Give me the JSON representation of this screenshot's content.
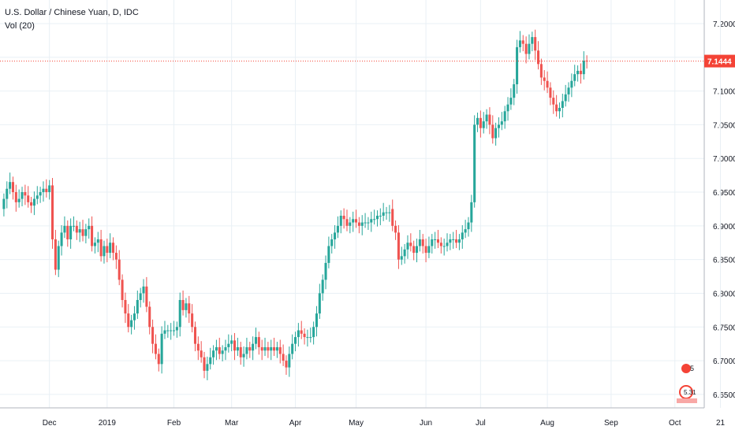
{
  "header": {
    "symbol_title": "U.S. Dollar / Chinese Yuan, D, IDC",
    "indicator": "Vol (20)"
  },
  "colors": {
    "up": "#26a69a",
    "down": "#ef5350",
    "grid": "#e9f0f5",
    "axis_text": "#131722",
    "price_line": "#f44336"
  },
  "chart_data": {
    "type": "candlestick",
    "title": "U.S. Dollar / Chinese Yuan, D, IDC",
    "y_ticks": [
      "7.2000",
      "7.1500",
      "7.1000",
      "7.0500",
      "7.0000",
      "6.9500",
      "6.9000",
      "6.8500",
      "6.8000",
      "6.7500",
      "6.7000",
      "6.6500"
    ],
    "ylim": [
      6.63,
      7.235
    ],
    "x_ticks": [
      {
        "label": "Dec",
        "bar": 15
      },
      {
        "label": "2019",
        "bar": 34
      },
      {
        "label": "Feb",
        "bar": 56
      },
      {
        "label": "Mar",
        "bar": 75
      },
      {
        "label": "Apr",
        "bar": 96
      },
      {
        "label": "May",
        "bar": 116
      },
      {
        "label": "Jun",
        "bar": 139
      },
      {
        "label": "Jul",
        "bar": 157
      },
      {
        "label": "Aug",
        "bar": 179
      },
      {
        "label": "Sep",
        "bar": 200
      },
      {
        "label": "Oct",
        "bar": 221
      },
      {
        "label": "21",
        "bar": 236
      }
    ],
    "grid": true,
    "last_price": 7.1444,
    "last_price_label": "7.1444",
    "closes": [
      6.94,
      6.955,
      6.965,
      6.95,
      6.935,
      6.94,
      6.95,
      6.945,
      6.935,
      6.93,
      6.94,
      6.945,
      6.95,
      6.955,
      6.95,
      6.96,
      6.88,
      6.835,
      6.87,
      6.89,
      6.9,
      6.88,
      6.9,
      6.9,
      6.89,
      6.895,
      6.885,
      6.895,
      6.9,
      6.87,
      6.875,
      6.88,
      6.855,
      6.87,
      6.86,
      6.875,
      6.86,
      6.85,
      6.82,
      6.79,
      6.77,
      6.75,
      6.76,
      6.77,
      6.79,
      6.8,
      6.81,
      6.78,
      6.75,
      6.725,
      6.71,
      6.695,
      6.74,
      6.745,
      6.745,
      6.745,
      6.745,
      6.75,
      6.79,
      6.775,
      6.785,
      6.77,
      6.75,
      6.725,
      6.715,
      6.705,
      6.685,
      6.695,
      6.705,
      6.715,
      6.72,
      6.71,
      6.715,
      6.72,
      6.725,
      6.73,
      6.715,
      6.72,
      6.705,
      6.71,
      6.72,
      6.715,
      6.725,
      6.735,
      6.72,
      6.715,
      6.72,
      6.715,
      6.72,
      6.715,
      6.72,
      6.71,
      6.7,
      6.69,
      6.71,
      6.725,
      6.735,
      6.745,
      6.74,
      6.735,
      6.735,
      6.735,
      6.75,
      6.77,
      6.8,
      6.82,
      6.845,
      6.87,
      6.88,
      6.89,
      6.9,
      6.915,
      6.91,
      6.9,
      6.905,
      6.91,
      6.905,
      6.9,
      6.905,
      6.905,
      6.905,
      6.91,
      6.91,
      6.915,
      6.915,
      6.92,
      6.92,
      6.92,
      6.9,
      6.89,
      6.85,
      6.855,
      6.865,
      6.875,
      6.87,
      6.86,
      6.87,
      6.88,
      6.87,
      6.86,
      6.87,
      6.88,
      6.88,
      6.875,
      6.87,
      6.87,
      6.875,
      6.88,
      6.88,
      6.875,
      6.88,
      6.89,
      6.895,
      6.905,
      6.935,
      7.05,
      7.06,
      7.045,
      7.055,
      7.065,
      7.05,
      7.03,
      7.045,
      7.05,
      7.055,
      7.07,
      7.08,
      7.09,
      7.11,
      7.165,
      7.175,
      7.17,
      7.155,
      7.17,
      7.18,
      7.16,
      7.14,
      7.12,
      7.115,
      7.105,
      7.09,
      7.08,
      7.07,
      7.075,
      7.085,
      7.095,
      7.105,
      7.115,
      7.125,
      7.13,
      7.125,
      7.145,
      7.1444
    ],
    "opens": [
      6.925,
      6.94,
      6.955,
      6.965,
      6.95,
      6.935,
      6.94,
      6.95,
      6.945,
      6.935,
      6.93,
      6.94,
      6.945,
      6.95,
      6.955,
      6.95,
      6.96,
      6.88,
      6.835,
      6.87,
      6.89,
      6.9,
      6.88,
      6.9,
      6.9,
      6.89,
      6.895,
      6.885,
      6.895,
      6.9,
      6.87,
      6.875,
      6.88,
      6.855,
      6.87,
      6.86,
      6.875,
      6.86,
      6.85,
      6.82,
      6.79,
      6.77,
      6.75,
      6.76,
      6.77,
      6.79,
      6.8,
      6.81,
      6.78,
      6.75,
      6.725,
      6.71,
      6.695,
      6.74,
      6.745,
      6.745,
      6.745,
      6.745,
      6.75,
      6.79,
      6.775,
      6.785,
      6.77,
      6.75,
      6.725,
      6.715,
      6.705,
      6.685,
      6.695,
      6.705,
      6.715,
      6.72,
      6.71,
      6.715,
      6.72,
      6.725,
      6.73,
      6.715,
      6.72,
      6.705,
      6.71,
      6.72,
      6.715,
      6.725,
      6.735,
      6.72,
      6.715,
      6.72,
      6.715,
      6.72,
      6.715,
      6.72,
      6.71,
      6.7,
      6.69,
      6.71,
      6.725,
      6.735,
      6.745,
      6.74,
      6.735,
      6.735,
      6.735,
      6.75,
      6.77,
      6.8,
      6.82,
      6.845,
      6.87,
      6.88,
      6.89,
      6.9,
      6.915,
      6.91,
      6.9,
      6.905,
      6.91,
      6.905,
      6.9,
      6.905,
      6.905,
      6.905,
      6.91,
      6.91,
      6.915,
      6.915,
      6.92,
      6.92,
      6.925,
      6.9,
      6.89,
      6.85,
      6.855,
      6.865,
      6.875,
      6.87,
      6.86,
      6.87,
      6.88,
      6.87,
      6.86,
      6.87,
      6.88,
      6.88,
      6.875,
      6.87,
      6.87,
      6.875,
      6.88,
      6.88,
      6.875,
      6.88,
      6.89,
      6.895,
      6.905,
      6.935,
      7.05,
      7.06,
      7.045,
      7.055,
      7.065,
      7.05,
      7.03,
      7.045,
      7.05,
      7.055,
      7.07,
      7.08,
      7.09,
      7.11,
      7.165,
      7.175,
      7.17,
      7.155,
      7.17,
      7.18,
      7.16,
      7.14,
      7.12,
      7.115,
      7.105,
      7.09,
      7.08,
      7.07,
      7.075,
      7.085,
      7.095,
      7.105,
      7.115,
      7.125,
      7.13,
      7.125,
      7.145,
      7.145
    ]
  },
  "volume_badge": {
    "value": "5",
    "sub": "5.31"
  }
}
